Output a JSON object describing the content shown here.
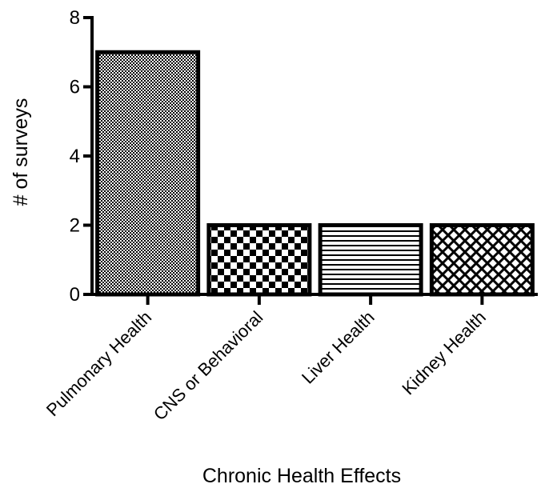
{
  "chart_data": {
    "type": "bar",
    "categories": [
      "Pulmonary Health",
      "CNS or Behavioral",
      "Liver Health",
      "Kidney Health"
    ],
    "values": [
      7,
      2,
      2,
      2
    ],
    "patterns": [
      "fine-dots",
      "checkerboard",
      "horizontal-lines",
      "crosshatch"
    ],
    "title": "",
    "xlabel": "Chronic Health Effects",
    "ylabel": "# of surveys",
    "ylim": [
      0,
      8
    ],
    "yticks": [
      0,
      2,
      4,
      6,
      8
    ],
    "grid": false,
    "legend": "none",
    "bar_stroke_color": "#000000",
    "bar_fill_color": "#ffffff"
  }
}
